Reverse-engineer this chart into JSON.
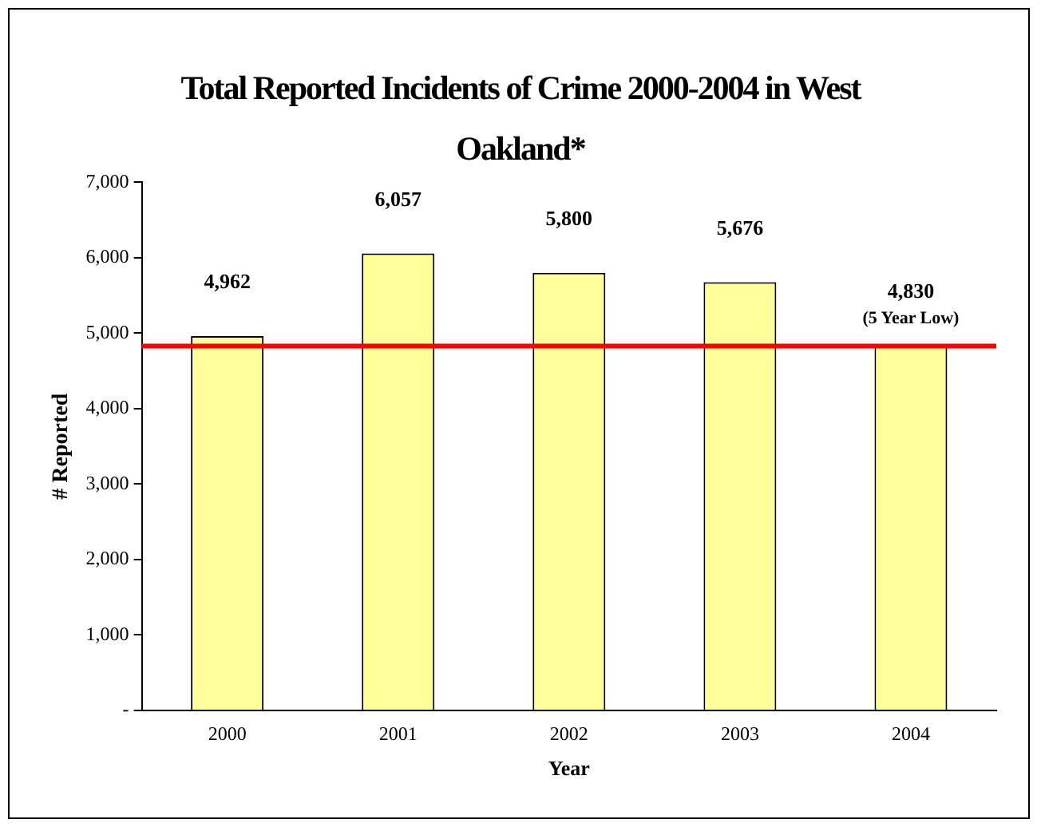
{
  "chart_data": {
    "type": "bar",
    "title": "Total Reported Incidents of Crime 2000-2004 in West Oakland*",
    "xlabel": "Year",
    "ylabel": "# Reported",
    "categories": [
      "2000",
      "2001",
      "2002",
      "2003",
      "2004"
    ],
    "values": [
      4962,
      6057,
      5800,
      5676,
      4830
    ],
    "color": "#ffff99",
    "value_labels": [
      "4,962",
      "6,057",
      "5,800",
      "5,676",
      "4,830"
    ],
    "annotations": [
      {
        "text": "(5 Year Low)",
        "x": "2004",
        "y": 4830
      }
    ],
    "ref_lines": [
      {
        "axis": "y",
        "value": 4830,
        "color": "#ff0000"
      }
    ],
    "ylim": [
      0,
      7000
    ],
    "yticks": [
      {
        "value": 0,
        "label": "-"
      },
      {
        "value": 1000,
        "label": "1,000"
      },
      {
        "value": 2000,
        "label": "2,000"
      },
      {
        "value": 3000,
        "label": "3,000"
      },
      {
        "value": 4000,
        "label": "4,000"
      },
      {
        "value": 5000,
        "label": "5,000"
      },
      {
        "value": 6000,
        "label": "6,000"
      },
      {
        "value": 7000,
        "label": "7,000"
      }
    ],
    "grid": false,
    "legend": false
  }
}
